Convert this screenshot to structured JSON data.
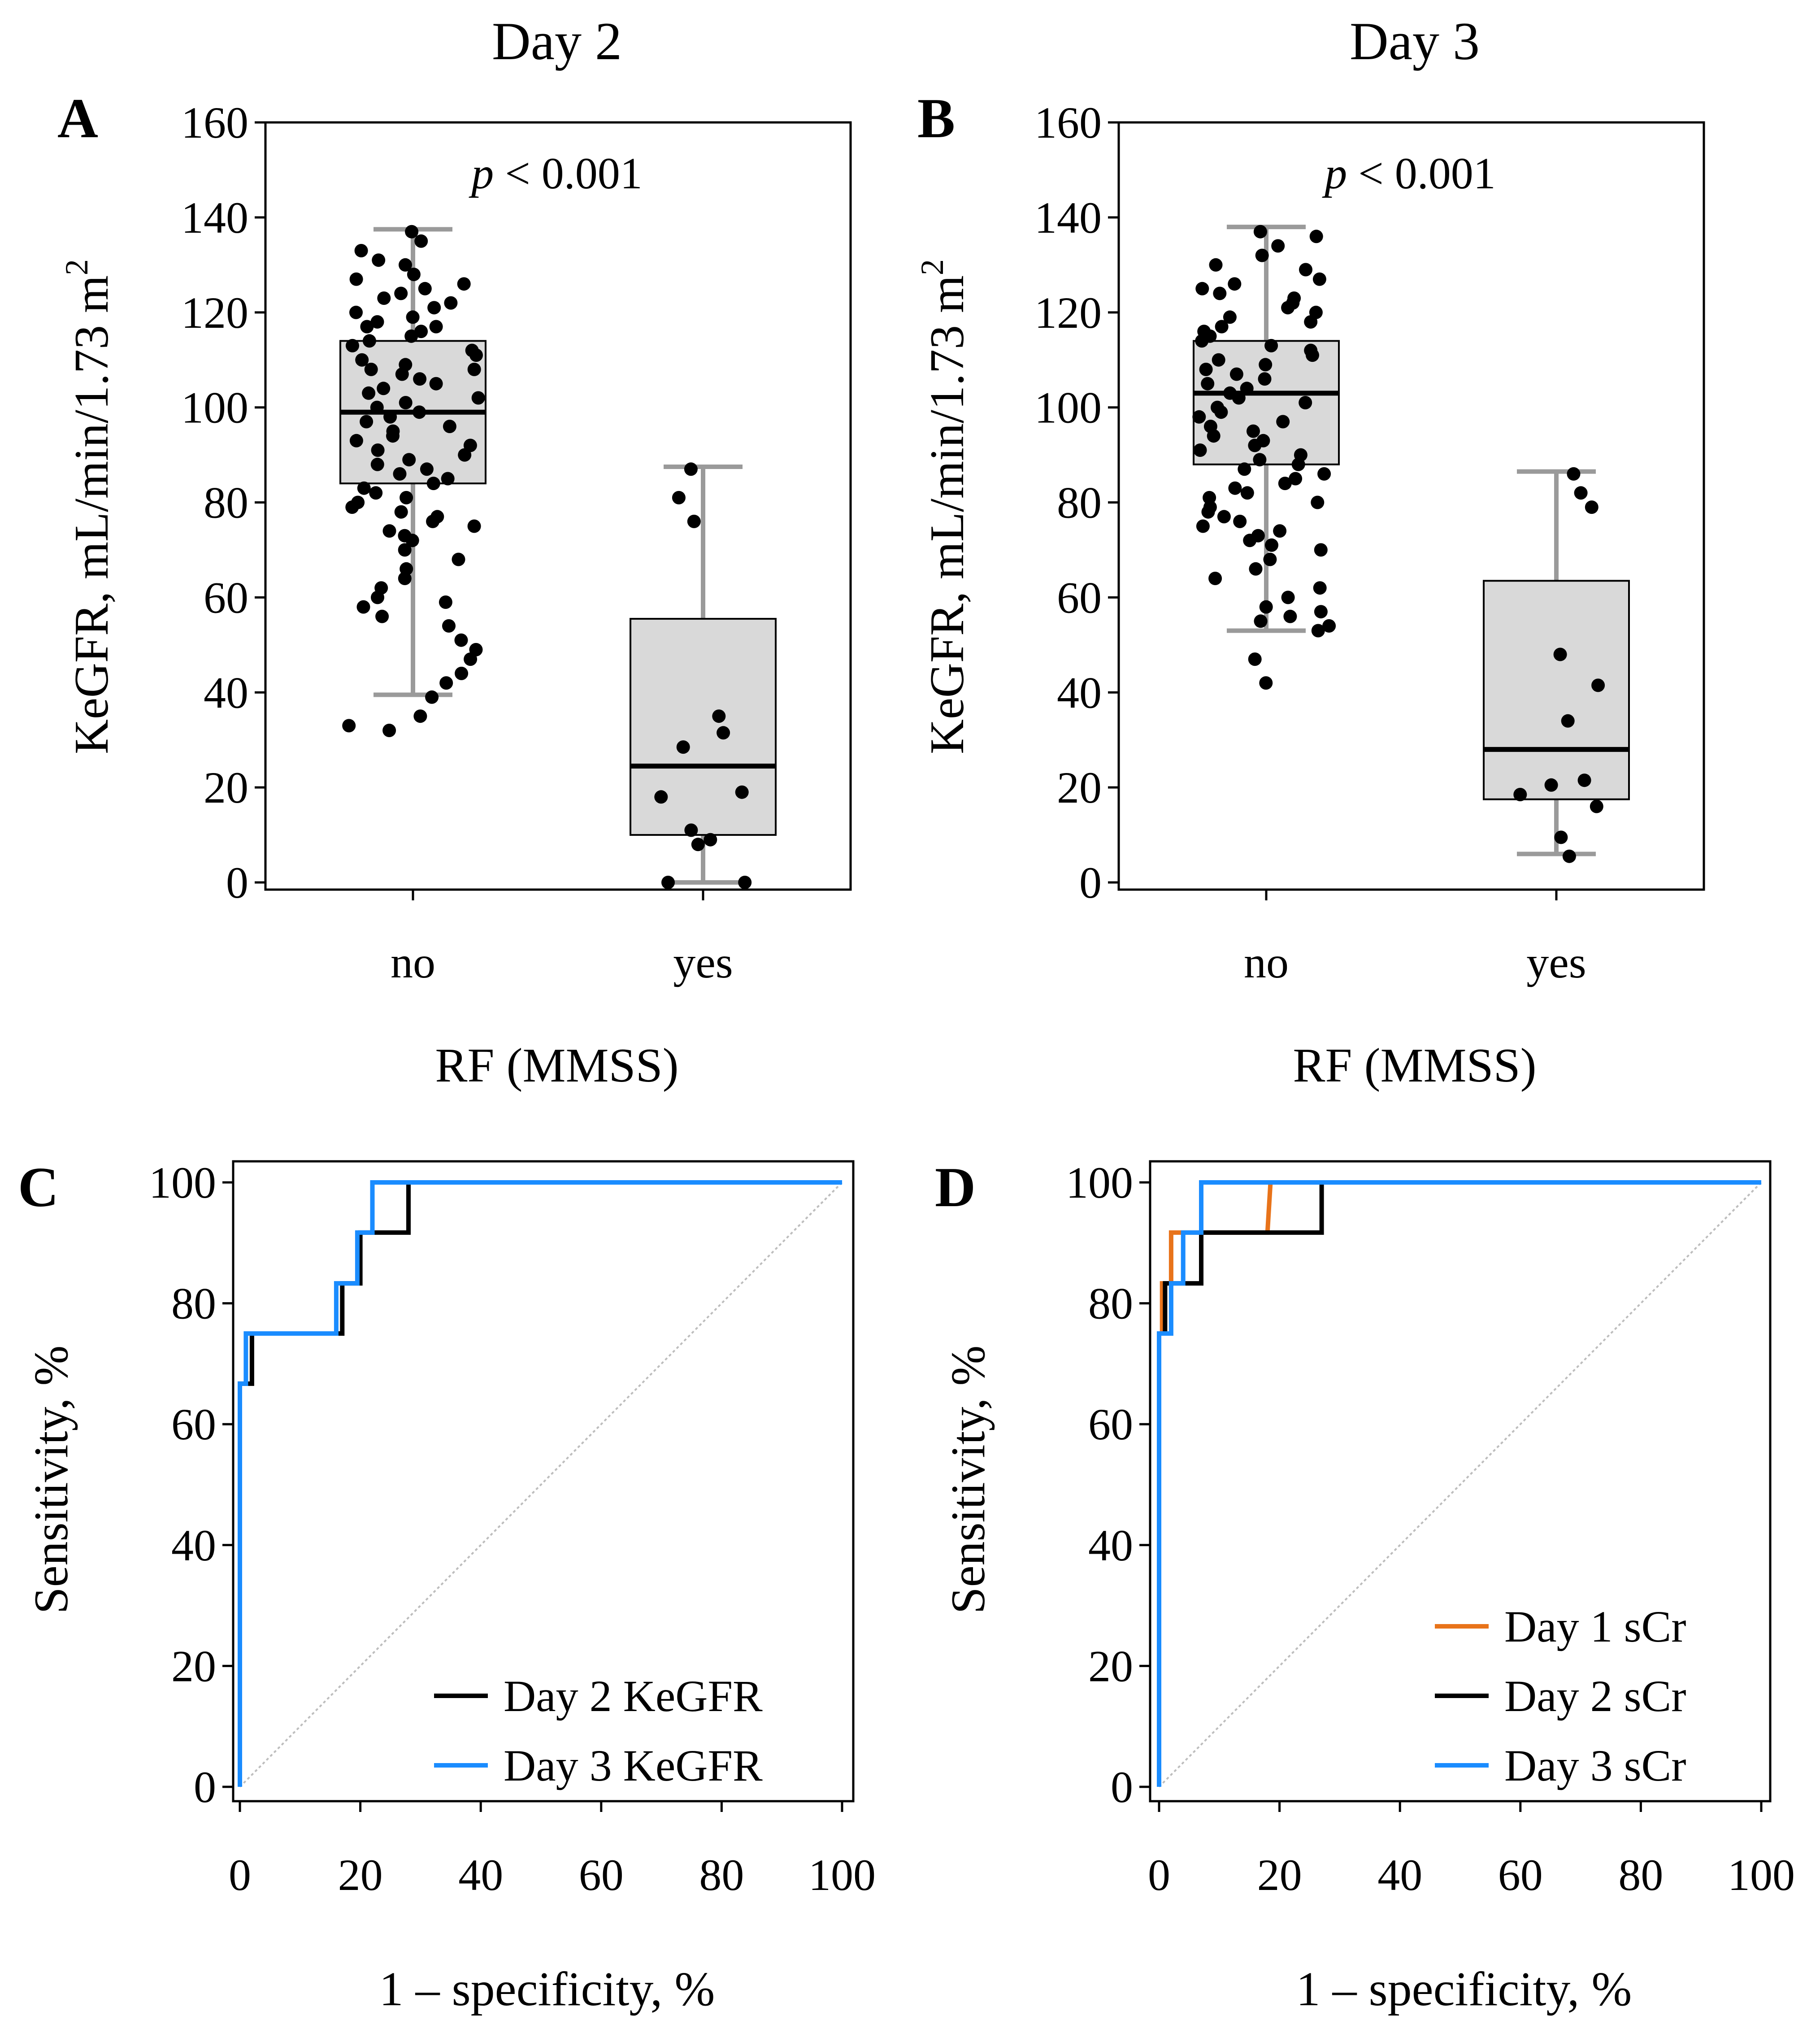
{
  "chart_data": [
    {
      "panel": "A",
      "type": "box",
      "title": "Day 2",
      "xlabel": "RF (MMSS)",
      "ylabel": "KeGFR, mL/min/1.73 m",
      "ylabel_sup": "2",
      "categories": [
        "no",
        "yes"
      ],
      "ylim": [
        0,
        160
      ],
      "yticks": [
        0,
        20,
        40,
        60,
        80,
        100,
        120,
        140,
        160
      ],
      "annotation": {
        "italic": "p",
        "text": " < 0.001"
      },
      "boxes": [
        {
          "category": "no",
          "whisker_low": 39.5,
          "q1": 84,
          "median": 99,
          "q3": 114,
          "whisker_high": 137.5
        },
        {
          "category": "yes",
          "whisker_low": 0,
          "q1": 10,
          "median": 24.5,
          "q3": 55.5,
          "whisker_high": 87.5
        }
      ],
      "points": [
        {
          "category": "no",
          "values": [
            137,
            135,
            133,
            131,
            130,
            128,
            127,
            126,
            125,
            124,
            123,
            122,
            121,
            120,
            119,
            118,
            117,
            117,
            116,
            115,
            114,
            113,
            112,
            111,
            110,
            109,
            108,
            108,
            107,
            106,
            105,
            104,
            103,
            102,
            101,
            100,
            99,
            98,
            97,
            96,
            95,
            94,
            93,
            92,
            91,
            90,
            89,
            88,
            87,
            86,
            85,
            84,
            83,
            82,
            81,
            80,
            79,
            78,
            77,
            76,
            75,
            74,
            73,
            72,
            70,
            68,
            66,
            64,
            62,
            60,
            59,
            58,
            56,
            54,
            51,
            49,
            47,
            44,
            42,
            39,
            35,
            33,
            32
          ]
        },
        {
          "category": "yes",
          "values": [
            87,
            81,
            76,
            35,
            31.5,
            28.5,
            19,
            18,
            11,
            9,
            8,
            0,
            0
          ]
        }
      ]
    },
    {
      "panel": "B",
      "type": "box",
      "title": "Day 3",
      "xlabel": "RF (MMSS)",
      "ylabel": "KeGFR, mL/min/1.73 m",
      "ylabel_sup": "2",
      "categories": [
        "no",
        "yes"
      ],
      "ylim": [
        0,
        160
      ],
      "yticks": [
        0,
        20,
        40,
        60,
        80,
        100,
        120,
        140,
        160
      ],
      "annotation": {
        "italic": "p",
        "text": " < 0.001"
      },
      "boxes": [
        {
          "category": "no",
          "whisker_low": 53,
          "q1": 88,
          "median": 103,
          "q3": 114,
          "whisker_high": 138
        },
        {
          "category": "yes",
          "whisker_low": 6,
          "q1": 17.5,
          "median": 28,
          "q3": 63.5,
          "whisker_high": 86.5
        }
      ],
      "points": [
        {
          "category": "no",
          "values": [
            137,
            136,
            134,
            132,
            130,
            129,
            127,
            126,
            125,
            124,
            123,
            122,
            121,
            120,
            119,
            118,
            117,
            116,
            115,
            114,
            113,
            112,
            111,
            110,
            109,
            108,
            107,
            106,
            105,
            104,
            103,
            102,
            101,
            100,
            99,
            98,
            97,
            96,
            95,
            94,
            93,
            92,
            91,
            90,
            89,
            88,
            87,
            86,
            85,
            84,
            83,
            82,
            81,
            80,
            79,
            78,
            77,
            76,
            75,
            74,
            73,
            72,
            71,
            70,
            68,
            66,
            64,
            62,
            60,
            58,
            57,
            56,
            55,
            54,
            53,
            47,
            42
          ]
        },
        {
          "category": "yes",
          "values": [
            86,
            82,
            79,
            48,
            41.5,
            34,
            21.5,
            20.5,
            18.5,
            16,
            9.5,
            5.5
          ]
        }
      ]
    },
    {
      "panel": "C",
      "type": "line",
      "xlabel": "1 – specificity, %",
      "ylabel": "Sensitivity, %",
      "xlim": [
        0,
        100
      ],
      "ylim": [
        0,
        100
      ],
      "xticks": [
        0,
        20,
        40,
        60,
        80,
        100
      ],
      "yticks": [
        0,
        20,
        40,
        60,
        80,
        100
      ],
      "legend_position": "bottom-right",
      "series": [
        {
          "name": "Day 2 KeGFR",
          "color": "#000000",
          "points": [
            [
              0,
              0
            ],
            [
              0,
              66.7
            ],
            [
              2,
              66.7
            ],
            [
              2,
              75
            ],
            [
              17,
              75
            ],
            [
              17,
              83.3
            ],
            [
              20,
              83.3
            ],
            [
              20,
              91.7
            ],
            [
              28,
              91.7
            ],
            [
              28,
              100
            ],
            [
              100,
              100
            ]
          ]
        },
        {
          "name": "Day 3 KeGFR",
          "color": "#1a8cff",
          "points": [
            [
              0,
              0
            ],
            [
              0,
              66.7
            ],
            [
              1,
              66.7
            ],
            [
              1,
              75
            ],
            [
              16,
              75
            ],
            [
              16,
              83.3
            ],
            [
              19.5,
              83.3
            ],
            [
              19.5,
              91.7
            ],
            [
              22,
              91.7
            ],
            [
              22,
              100
            ],
            [
              100,
              100
            ]
          ]
        }
      ],
      "reference_line": [
        [
          0,
          0
        ],
        [
          100,
          100
        ]
      ]
    },
    {
      "panel": "D",
      "type": "line",
      "xlabel": "1 – specificity, %",
      "ylabel": "Sensitivity, %",
      "xlim": [
        0,
        100
      ],
      "ylim": [
        0,
        100
      ],
      "xticks": [
        0,
        20,
        40,
        60,
        80,
        100
      ],
      "yticks": [
        0,
        20,
        40,
        60,
        80,
        100
      ],
      "legend_position": "bottom-right",
      "series": [
        {
          "name": "Day 1 sCr",
          "color": "#e8731a",
          "points": [
            [
              0,
              0
            ],
            [
              0,
              75
            ],
            [
              0.5,
              75
            ],
            [
              0.5,
              83.3
            ],
            [
              2,
              83.3
            ],
            [
              2,
              91.7
            ],
            [
              18,
              91.7
            ],
            [
              18.5,
              100
            ],
            [
              100,
              100
            ]
          ]
        },
        {
          "name": "Day 2 sCr",
          "color": "#000000",
          "points": [
            [
              0,
              0
            ],
            [
              0,
              75
            ],
            [
              1,
              75
            ],
            [
              1,
              83.3
            ],
            [
              7,
              83.3
            ],
            [
              7,
              91.7
            ],
            [
              27,
              91.7
            ],
            [
              27,
              100
            ],
            [
              100,
              100
            ]
          ]
        },
        {
          "name": "Day 3 sCr",
          "color": "#1a8cff",
          "points": [
            [
              0,
              0
            ],
            [
              0,
              75
            ],
            [
              2,
              75
            ],
            [
              2,
              83.3
            ],
            [
              4,
              83.3
            ],
            [
              4,
              91.7
            ],
            [
              7,
              91.7
            ],
            [
              7,
              100
            ],
            [
              100,
              100
            ]
          ]
        }
      ],
      "reference_line": [
        [
          0,
          0
        ],
        [
          100,
          100
        ]
      ]
    }
  ]
}
